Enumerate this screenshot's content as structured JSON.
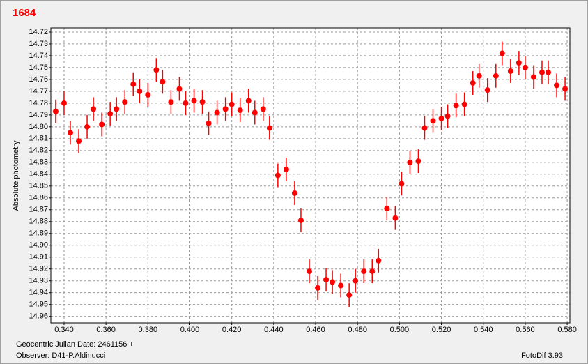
{
  "chart_data": {
    "type": "scatter",
    "title": "1684",
    "y_label": "Absolute photometry",
    "x_label": "Geocentric Julian Date: 2461156 +",
    "annotations": [
      "Observer: D41-P.Aldinucci",
      "FotoDif 3.93"
    ],
    "color": "#ff0000",
    "grid": true,
    "y_inverted": true,
    "xlim": [
      0.3337,
      0.5813
    ],
    "ylim": [
      14.7165,
      14.9655
    ],
    "xticks": [
      {
        "value": 0.34,
        "label": "0.340"
      },
      {
        "value": 0.36,
        "label": "0.360"
      },
      {
        "value": 0.38,
        "label": "0.380"
      },
      {
        "value": 0.4,
        "label": "0.400"
      },
      {
        "value": 0.42,
        "label": "0.420"
      },
      {
        "value": 0.44,
        "label": "0.440"
      },
      {
        "value": 0.46,
        "label": "0.460"
      },
      {
        "value": 0.48,
        "label": "0.480"
      },
      {
        "value": 0.5,
        "label": "0.500"
      },
      {
        "value": 0.52,
        "label": "0.520"
      },
      {
        "value": 0.54,
        "label": "0.540"
      },
      {
        "value": 0.56,
        "label": "0.560"
      },
      {
        "value": 0.58,
        "label": "0.580"
      }
    ],
    "yticks": [
      14.72,
      14.73,
      14.74,
      14.75,
      14.76,
      14.77,
      14.78,
      14.79,
      {
        "value": 14.8,
        "label": "14.80"
      },
      14.81,
      14.82,
      14.83,
      14.84,
      14.85,
      14.86,
      14.87,
      14.88,
      14.89,
      {
        "value": 14.9,
        "label": "14.90"
      },
      14.91,
      14.92,
      14.93,
      14.94,
      14.95,
      14.96
    ],
    "x": [
      0.336,
      0.34,
      0.343,
      0.347,
      0.351,
      0.354,
      0.358,
      0.362,
      0.365,
      0.369,
      0.373,
      0.376,
      0.38,
      0.384,
      0.387,
      0.391,
      0.395,
      0.398,
      0.402,
      0.406,
      0.409,
      0.413,
      0.417,
      0.42,
      0.424,
      0.428,
      0.431,
      0.435,
      0.438,
      0.442,
      0.446,
      0.45,
      0.453,
      0.457,
      0.461,
      0.465,
      0.468,
      0.472,
      0.476,
      0.479,
      0.483,
      0.487,
      0.49,
      0.494,
      0.498,
      0.501,
      0.505,
      0.509,
      0.512,
      0.516,
      0.52,
      0.523,
      0.527,
      0.531,
      0.535,
      0.538,
      0.542,
      0.546,
      0.549,
      0.553,
      0.557,
      0.56,
      0.564,
      0.568,
      0.571,
      0.575,
      0.579
    ],
    "values": [
      14.787,
      14.78,
      14.805,
      14.812,
      14.8,
      14.785,
      14.798,
      14.789,
      14.785,
      14.779,
      14.764,
      14.77,
      14.773,
      14.752,
      14.762,
      14.779,
      14.768,
      14.78,
      14.778,
      14.779,
      14.797,
      14.788,
      14.785,
      14.781,
      14.786,
      14.778,
      14.788,
      14.785,
      14.801,
      14.841,
      14.836,
      14.856,
      14.879,
      14.922,
      14.936,
      14.929,
      14.931,
      14.934,
      14.942,
      14.93,
      14.922,
      14.922,
      14.913,
      14.869,
      14.877,
      14.848,
      14.83,
      14.829,
      14.801,
      14.795,
      14.793,
      14.791,
      14.782,
      14.781,
      14.763,
      14.757,
      14.769,
      14.757,
      14.738,
      14.753,
      14.746,
      14.75,
      14.758,
      14.754,
      14.754,
      14.765,
      14.768
    ],
    "errors": [
      0.01,
      0.01,
      0.01,
      0.01,
      0.01,
      0.01,
      0.01,
      0.01,
      0.01,
      0.01,
      0.01,
      0.01,
      0.01,
      0.01,
      0.01,
      0.01,
      0.01,
      0.01,
      0.01,
      0.01,
      0.01,
      0.01,
      0.01,
      0.01,
      0.01,
      0.01,
      0.01,
      0.01,
      0.01,
      0.01,
      0.01,
      0.01,
      0.01,
      0.01,
      0.01,
      0.01,
      0.01,
      0.01,
      0.01,
      0.01,
      0.01,
      0.01,
      0.01,
      0.01,
      0.01,
      0.01,
      0.01,
      0.01,
      0.01,
      0.01,
      0.01,
      0.01,
      0.01,
      0.01,
      0.01,
      0.01,
      0.01,
      0.01,
      0.01,
      0.01,
      0.01,
      0.01,
      0.01,
      0.01,
      0.01,
      0.01,
      0.01
    ]
  }
}
